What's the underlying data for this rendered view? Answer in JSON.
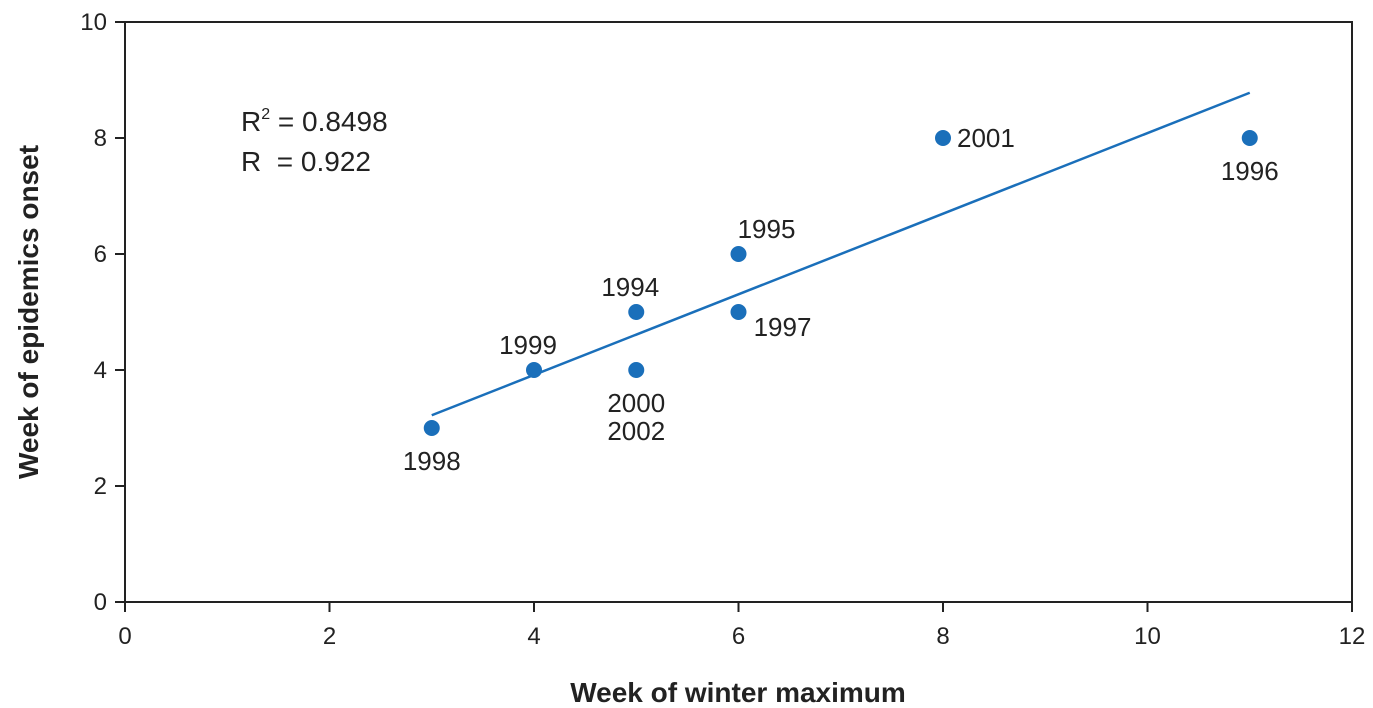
{
  "chart_data": {
    "type": "scatter",
    "xlabel": "Week of winter maximum",
    "ylabel": "Week of epidemics onset",
    "xlim": [
      0,
      12
    ],
    "ylim": [
      0,
      10
    ],
    "xticks": [
      "0",
      "2",
      "4",
      "6",
      "8",
      "10",
      "12"
    ],
    "yticks": [
      "0",
      "2",
      "4",
      "6",
      "8",
      "10"
    ],
    "grid": false,
    "point_color": "#1a6fba",
    "line_color": "#1a6fba",
    "points": [
      {
        "x": 3,
        "y": 3,
        "label": "1998",
        "pos": "below"
      },
      {
        "x": 4,
        "y": 4,
        "label": "1999",
        "pos": "above-left"
      },
      {
        "x": 5,
        "y": 5,
        "label": "1994",
        "pos": "above-left"
      },
      {
        "x": 5,
        "y": 4,
        "label": "2000\n2002",
        "pos": "below"
      },
      {
        "x": 6,
        "y": 6,
        "label": "1995",
        "pos": "above-right"
      },
      {
        "x": 6,
        "y": 5,
        "label": "1997",
        "pos": "below-right"
      },
      {
        "x": 8,
        "y": 8,
        "label": "2001",
        "pos": "right"
      },
      {
        "x": 11,
        "y": 8,
        "label": "1996",
        "pos": "below"
      }
    ],
    "trendline": {
      "x": [
        3,
        11
      ],
      "y": [
        3.22,
        8.78
      ]
    },
    "annotations": {
      "r2_prefix": "R",
      "r2_sup": "2",
      "r2_value": " = 0.8498",
      "r": "R  = 0.922"
    }
  }
}
